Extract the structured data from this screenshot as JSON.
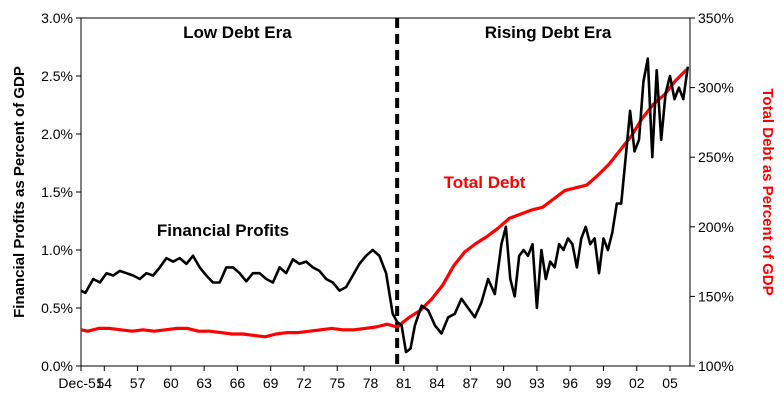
{
  "chart_data": {
    "type": "line",
    "left_axis": {
      "label": "Financial Profits as Percent of GDP",
      "ylim": [
        0.0,
        3.0
      ],
      "ticks": [
        0.0,
        0.5,
        1.0,
        1.5,
        2.0,
        2.5,
        3.0
      ],
      "tick_labels": [
        "0.0%",
        "0.5%",
        "1.0%",
        "1.5%",
        "2.0%",
        "2.5%",
        "3.0%"
      ]
    },
    "right_axis": {
      "label": "Total Debt as Percent of GDP",
      "ylim": [
        100,
        350
      ],
      "ticks": [
        100,
        150,
        200,
        250,
        300,
        350
      ],
      "tick_labels": [
        "100%",
        "150%",
        "200%",
        "250%",
        "300%",
        "350%"
      ]
    },
    "x_axis": {
      "xlim": [
        1951.9,
        2006.8
      ],
      "tick_positions": [
        1951.9,
        1954,
        1957,
        1960,
        1963,
        1966,
        1969,
        1972,
        1975,
        1978,
        1981,
        1984,
        1987,
        1990,
        1993,
        1996,
        1999,
        2002,
        2005
      ],
      "tick_labels": [
        "Dec-51",
        "54",
        "57",
        "60",
        "63",
        "66",
        "69",
        "72",
        "75",
        "78",
        "81",
        "84",
        "87",
        "90",
        "93",
        "96",
        "99",
        "02",
        "05"
      ]
    },
    "divider_year": 1980.4,
    "eras": [
      {
        "label": "Low Debt Era",
        "year": 1966
      },
      {
        "label": "Rising Debt Era",
        "year": 1994
      }
    ],
    "series": [
      {
        "name": "Financial Profits",
        "axis": "left",
        "color": "#000000",
        "label_year": 1965.5,
        "label_value": 1.12,
        "x": [
          1951.9,
          1952.3,
          1953,
          1953.6,
          1954.2,
          1954.8,
          1955.4,
          1956,
          1956.6,
          1957.2,
          1957.8,
          1958.4,
          1959,
          1959.6,
          1960.2,
          1960.8,
          1961.4,
          1962,
          1962.6,
          1963.2,
          1963.8,
          1964.4,
          1965,
          1965.6,
          1966.2,
          1966.8,
          1967.4,
          1968,
          1968.6,
          1969.2,
          1969.8,
          1970.4,
          1971,
          1971.6,
          1972.2,
          1972.8,
          1973.4,
          1974,
          1974.6,
          1975.2,
          1975.8,
          1976.4,
          1977,
          1977.6,
          1978.2,
          1978.8,
          1979.4,
          1980,
          1980.4,
          1980.8,
          1981.2,
          1981.6,
          1982,
          1982.6,
          1983.2,
          1983.8,
          1984.4,
          1985,
          1985.6,
          1986.2,
          1986.8,
          1987.4,
          1988,
          1988.6,
          1989.2,
          1989.8,
          1990.2,
          1990.6,
          1991,
          1991.4,
          1991.8,
          1992.2,
          1992.6,
          1993,
          1993.4,
          1993.8,
          1994.2,
          1994.6,
          1995,
          1995.4,
          1995.8,
          1996.2,
          1996.6,
          1997,
          1997.4,
          1997.8,
          1998.2,
          1998.6,
          1999,
          1999.4,
          1999.8,
          2000.2,
          2000.6,
          2001,
          2001.4,
          2001.8,
          2002.2,
          2002.6,
          2003,
          2003.4,
          2003.8,
          2004.2,
          2004.6,
          2005,
          2005.4,
          2005.8,
          2006.2,
          2006.6
        ],
        "values": [
          0.65,
          0.63,
          0.75,
          0.72,
          0.8,
          0.78,
          0.82,
          0.8,
          0.78,
          0.75,
          0.8,
          0.78,
          0.85,
          0.93,
          0.9,
          0.93,
          0.88,
          0.95,
          0.85,
          0.78,
          0.72,
          0.72,
          0.85,
          0.85,
          0.8,
          0.73,
          0.8,
          0.8,
          0.75,
          0.72,
          0.85,
          0.8,
          0.92,
          0.88,
          0.9,
          0.85,
          0.82,
          0.75,
          0.72,
          0.65,
          0.68,
          0.78,
          0.88,
          0.95,
          1.0,
          0.95,
          0.8,
          0.45,
          0.38,
          0.35,
          0.12,
          0.15,
          0.35,
          0.52,
          0.48,
          0.35,
          0.28,
          0.42,
          0.45,
          0.58,
          0.5,
          0.42,
          0.55,
          0.75,
          0.62,
          1.05,
          1.2,
          0.75,
          0.6,
          0.95,
          1.0,
          0.95,
          1.05,
          0.5,
          1.0,
          0.75,
          0.9,
          0.85,
          1.05,
          1.0,
          1.1,
          1.05,
          0.85,
          1.1,
          1.2,
          1.05,
          1.1,
          0.8,
          1.1,
          1.0,
          1.15,
          1.4,
          1.4,
          1.8,
          2.2,
          1.85,
          1.95,
          2.45,
          2.65,
          1.8,
          2.55,
          1.95,
          2.35,
          2.5,
          2.3,
          2.4,
          2.3,
          2.58
        ]
      },
      {
        "name": "Total Debt",
        "axis": "right",
        "color": "#ff0000",
        "label_year": 1990,
        "label_value": 228,
        "x": [
          1951.9,
          1952.5,
          1953.5,
          1954.5,
          1955.5,
          1956.5,
          1957.5,
          1958.5,
          1959.5,
          1960.5,
          1961.5,
          1962.5,
          1963.5,
          1964.5,
          1965.5,
          1966.5,
          1967.5,
          1968.5,
          1969.5,
          1970.5,
          1971.5,
          1972.5,
          1973.5,
          1974.5,
          1975.5,
          1976.5,
          1977.5,
          1978.5,
          1979.5,
          1980.4,
          1981.5,
          1982.5,
          1983.5,
          1984.5,
          1985.5,
          1986.5,
          1987.5,
          1988.5,
          1989.5,
          1990.5,
          1991.5,
          1992.5,
          1993.5,
          1994.5,
          1995.5,
          1996.5,
          1997.5,
          1998.5,
          1999.5,
          2000.5,
          2001.5,
          2002.5,
          2003.5,
          2004.5,
          2005.5,
          2006.5
        ],
        "values": [
          126,
          125,
          127,
          127,
          126,
          125,
          126,
          125,
          126,
          127,
          127,
          125,
          125,
          124,
          123,
          123,
          122,
          121,
          123,
          124,
          124,
          125,
          126,
          127,
          126,
          126,
          127,
          128,
          130,
          128,
          135,
          140,
          148,
          158,
          172,
          182,
          188,
          193,
          199,
          206,
          209,
          212,
          214,
          220,
          226,
          228,
          230,
          237,
          245,
          255,
          265,
          278,
          288,
          295,
          305,
          313
        ]
      }
    ]
  }
}
